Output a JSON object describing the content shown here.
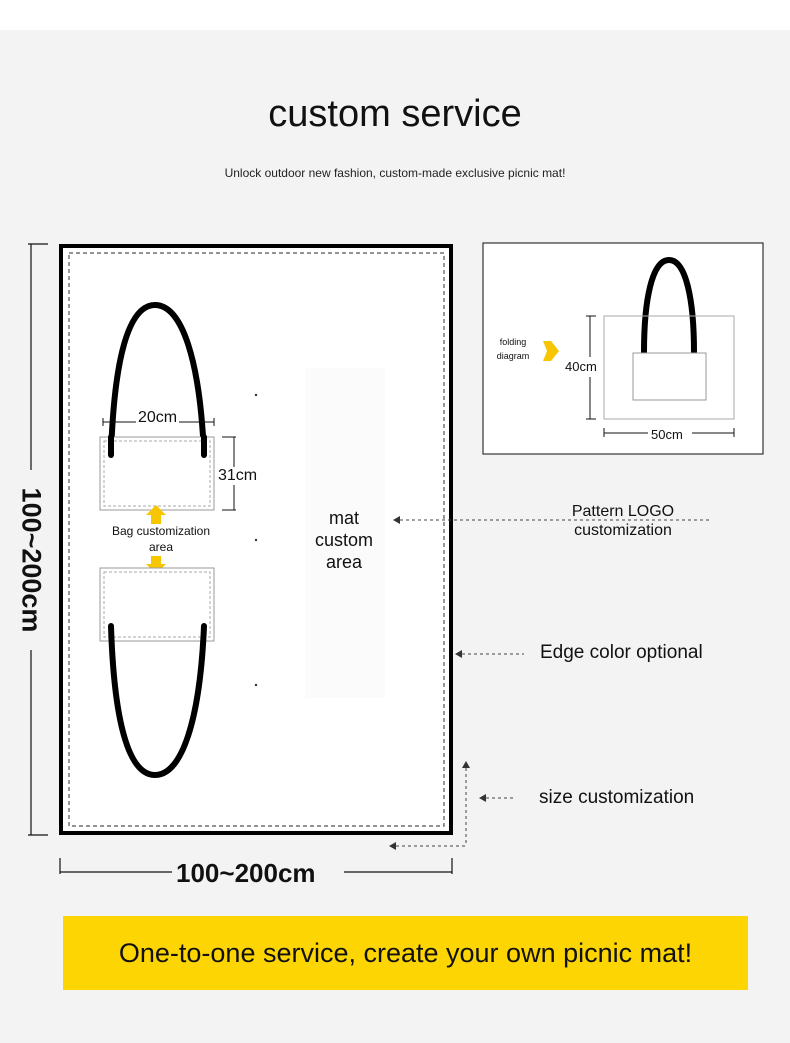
{
  "header": {
    "title": "custom service",
    "subtitle": "Unlock outdoor new fashion, custom-made exclusive picnic mat!"
  },
  "mat": {
    "vertical_size": "100~200cm",
    "horizontal_size": "100~200cm",
    "center_label": "mat\ncustom\narea",
    "bag_area_label": "Bag customization\narea",
    "bag_width": "20cm",
    "bag_height": "31cm"
  },
  "folding": {
    "label": "folding\ndiagram",
    "height": "40cm",
    "width": "50cm"
  },
  "callouts": {
    "pattern_logo": "Pattern LOGO\ncustomization",
    "edge_color": "Edge color optional",
    "size": "size customization"
  },
  "banner": {
    "text": "One-to-one service, create your own picnic mat!"
  },
  "colors": {
    "background": "#f3f3f3",
    "banner": "#fdd503",
    "arrow_yellow": "#f7c600",
    "line": "#111111"
  }
}
